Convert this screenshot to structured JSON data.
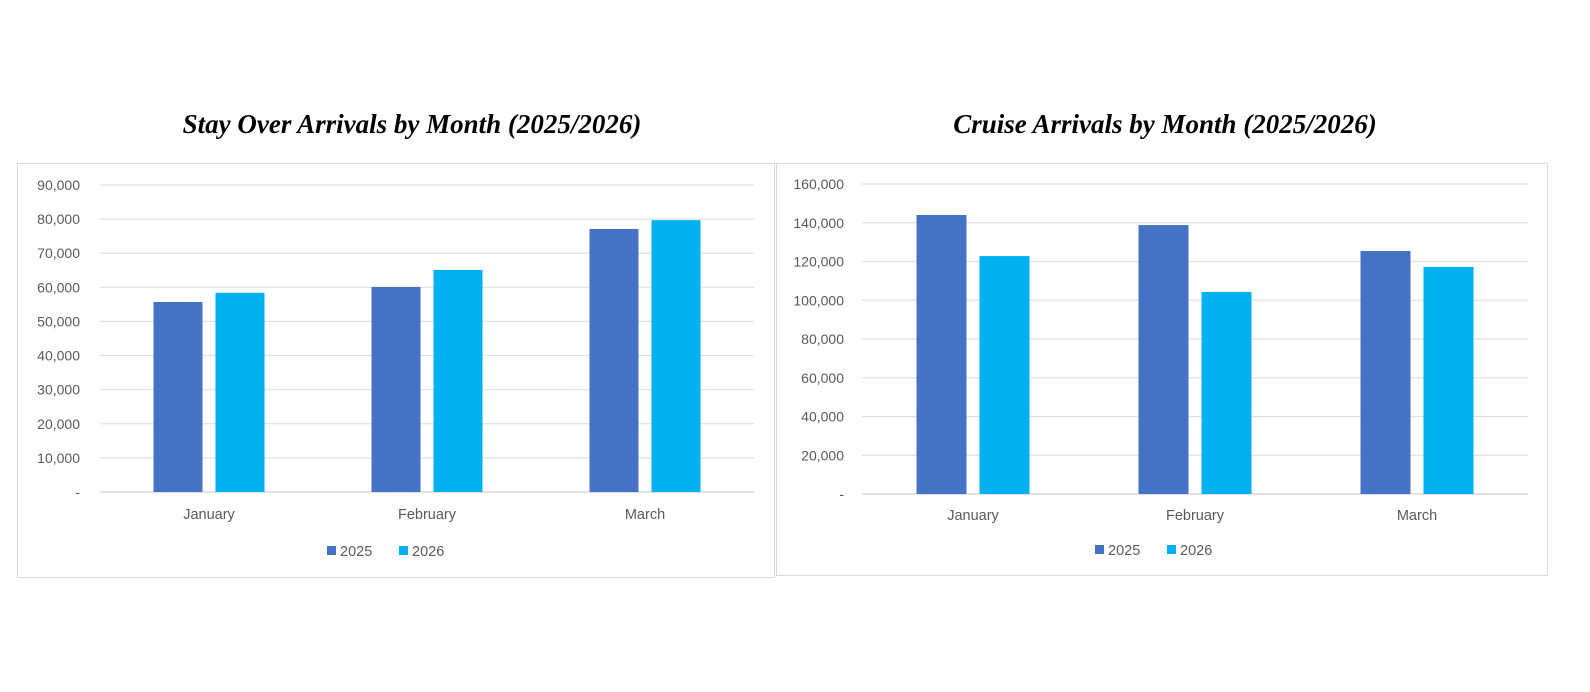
{
  "chart_data": [
    {
      "type": "bar",
      "title": "Stay Over Arrivals by Month (2025/2026)",
      "xlabel": "",
      "ylabel": "",
      "categories": [
        "January",
        "February",
        "March"
      ],
      "series": [
        {
          "name": "2025",
          "color": "#4472C4",
          "values": [
            55700,
            60100,
            77100
          ]
        },
        {
          "name": "2026",
          "color": "#00B0F0",
          "values": [
            58400,
            65100,
            79700
          ]
        }
      ],
      "ylim": [
        0,
        90000
      ],
      "yticks": [
        0,
        10000,
        20000,
        30000,
        40000,
        50000,
        60000,
        70000,
        80000,
        90000
      ],
      "ytick_labels": [
        "-",
        "10,000",
        "20,000",
        "30,000",
        "40,000",
        "50,000",
        "60,000",
        "70,000",
        "80,000",
        "90,000"
      ],
      "grid": true,
      "legend_position": "bottom"
    },
    {
      "type": "bar",
      "title": "Cruise Arrivals by Month (2025/2026)",
      "xlabel": "",
      "ylabel": "",
      "categories": [
        "January",
        "February",
        "March"
      ],
      "series": [
        {
          "name": "2025",
          "color": "#4472C4",
          "values": [
            144000,
            138800,
            125400
          ]
        },
        {
          "name": "2026",
          "color": "#00B0F0",
          "values": [
            122800,
            104300,
            117200
          ]
        }
      ],
      "ylim": [
        0,
        160000
      ],
      "yticks": [
        0,
        20000,
        40000,
        60000,
        80000,
        100000,
        120000,
        140000,
        160000
      ],
      "ytick_labels": [
        "-",
        "20,000",
        "40,000",
        "60,000",
        "80,000",
        "100,000",
        "120,000",
        "140,000",
        "160,000"
      ],
      "grid": true,
      "legend_position": "bottom"
    }
  ]
}
